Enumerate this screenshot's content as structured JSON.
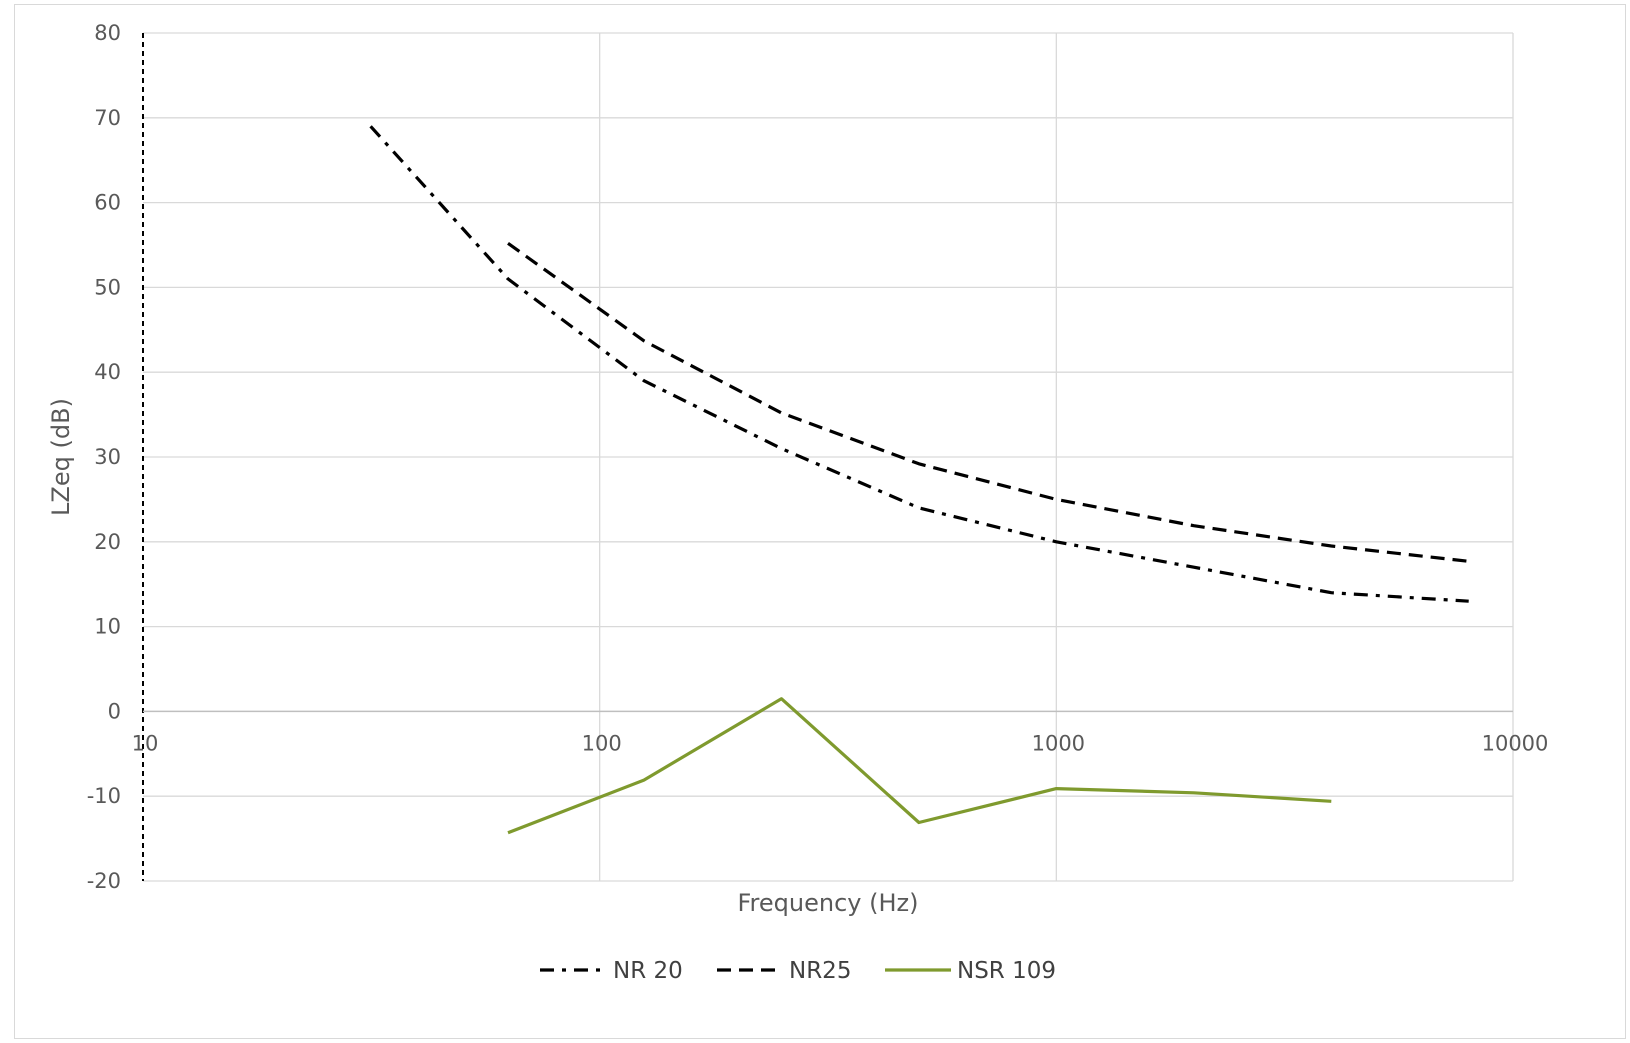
{
  "chart_data": {
    "type": "line",
    "title": "",
    "xlabel": "Frequency (Hz)",
    "ylabel": "LZeq (dB)",
    "x_scale": "log",
    "xlim": [
      10,
      10000
    ],
    "ylim": [
      -20,
      80
    ],
    "x_ticks": [
      10,
      100,
      1000,
      10000
    ],
    "x_tick_labels": [
      "10",
      "100",
      "1000",
      "10000"
    ],
    "y_ticks": [
      -20,
      -10,
      0,
      10,
      20,
      30,
      40,
      50,
      60,
      70,
      80
    ],
    "y_tick_labels": [
      "-20",
      "-10",
      "0",
      "10",
      "20",
      "30",
      "40",
      "50",
      "60",
      "70",
      "80"
    ],
    "grid": true,
    "legend_position": "bottom",
    "series": [
      {
        "name": "NR 20",
        "color": "#000000",
        "style": "dash-dot",
        "x": [
          31.5,
          63,
          125,
          250,
          500,
          1000,
          2000,
          4000,
          8000
        ],
        "y": [
          69,
          51,
          39,
          31,
          24,
          20,
          17,
          14,
          13
        ]
      },
      {
        "name": "NR25",
        "color": "#000000",
        "style": "dashed",
        "x": [
          63,
          125,
          250,
          500,
          1000,
          2000,
          4000,
          8000
        ],
        "y": [
          55.2,
          43.7,
          35.2,
          29.2,
          25,
          21.9,
          19.5,
          17.7
        ]
      },
      {
        "name": "NSR 109",
        "color": "#7f9a2e",
        "style": "solid",
        "x": [
          63,
          125,
          250,
          500,
          1000,
          2000,
          4000
        ],
        "y": [
          -14.3,
          -8.1,
          1.5,
          -13.1,
          -9.1,
          -9.6,
          -10.6
        ]
      }
    ]
  }
}
